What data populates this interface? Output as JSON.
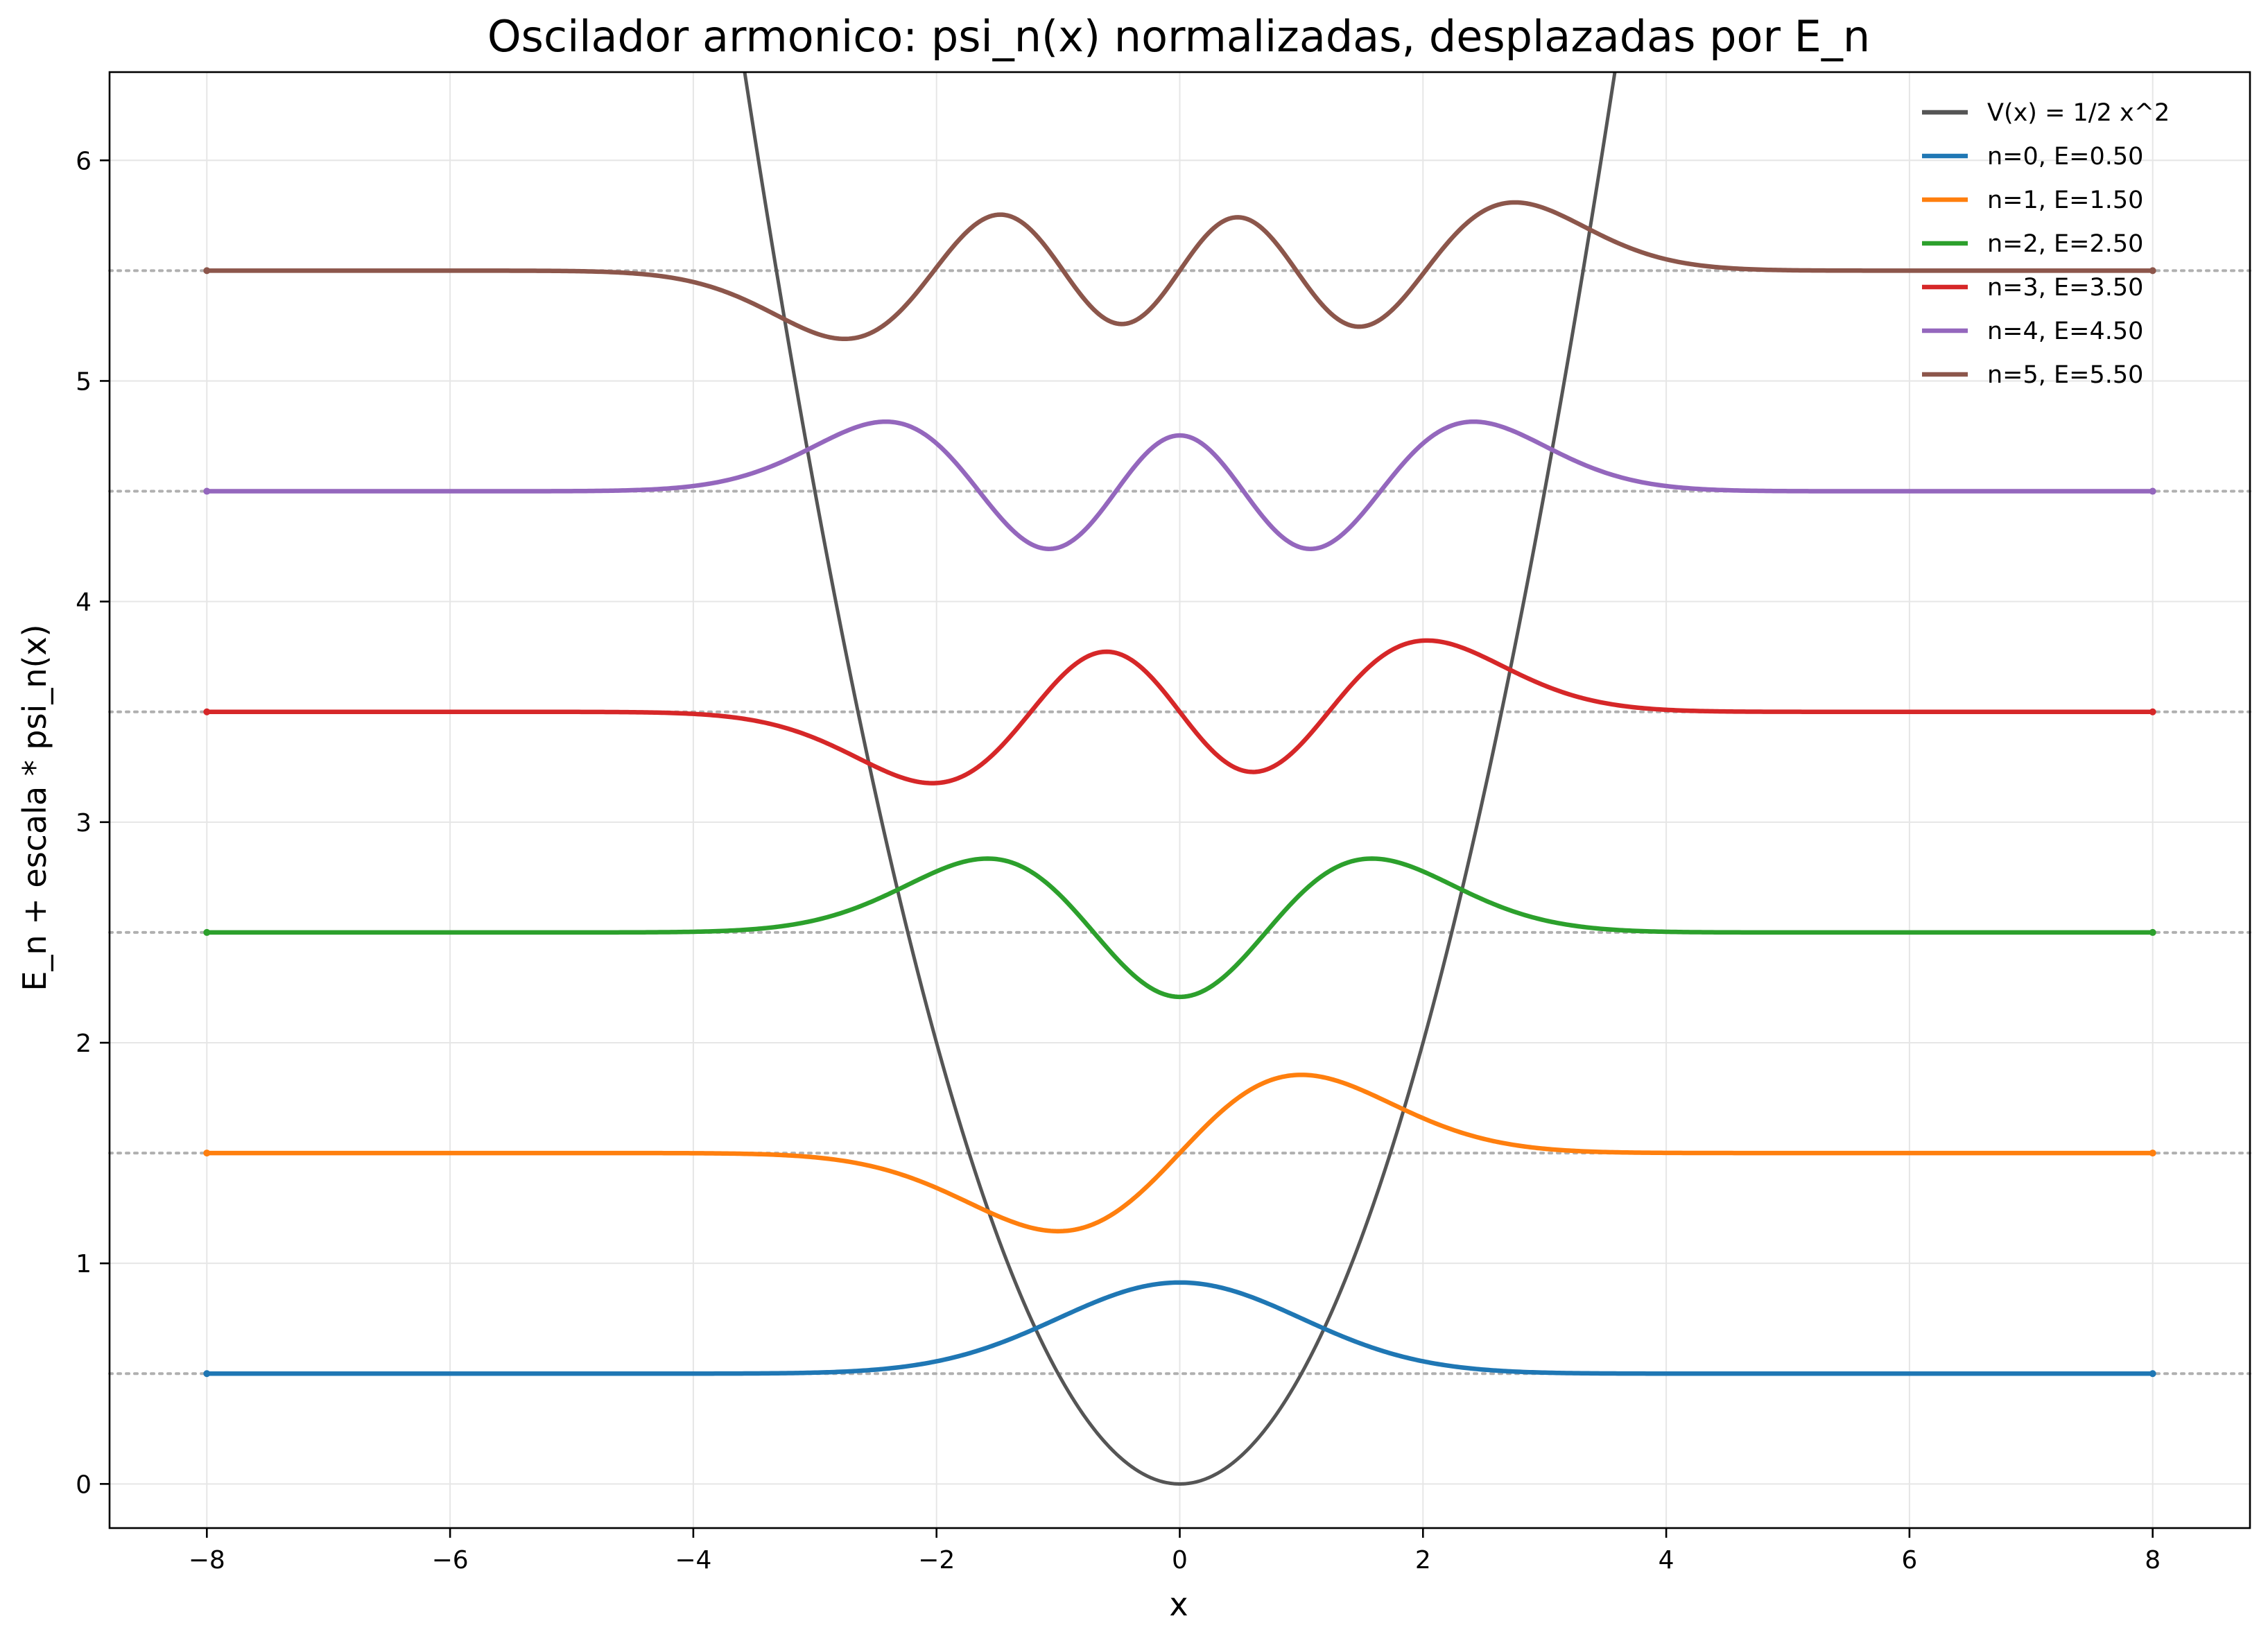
{
  "chart_data": {
    "type": "line",
    "title": "Oscilador armonico: psi_n(x) normalizadas, desplazadas por E_n",
    "xlabel": "x",
    "ylabel": "E_n + escala * psi_n(x)",
    "xlim": [
      -8.8,
      8.8
    ],
    "ylim": [
      -0.2,
      6.4
    ],
    "x_ticks": [
      -8,
      -6,
      -4,
      -2,
      0,
      2,
      4,
      6,
      8
    ],
    "x_tick_labels": [
      "−8",
      "−6",
      "−4",
      "−2",
      "0",
      "2",
      "4",
      "6",
      "8"
    ],
    "y_ticks": [
      0,
      1,
      2,
      3,
      4,
      5,
      6
    ],
    "y_tick_labels": [
      "0",
      "1",
      "2",
      "3",
      "4",
      "5",
      "6"
    ],
    "grid": true,
    "legend_position": "top-right",
    "x_range": [
      -8,
      8
    ],
    "scale": 0.55,
    "potential": {
      "name": "V(x) = 1/2 x^2",
      "formula": "0.5*x^2",
      "color": "#555555"
    },
    "series": [
      {
        "name": "n=0, E=0.50",
        "n": 0,
        "energy": 0.5,
        "color": "#1f77b4"
      },
      {
        "name": "n=1, E=1.50",
        "n": 1,
        "energy": 1.5,
        "color": "#ff7f0e"
      },
      {
        "name": "n=2, E=2.50",
        "n": 2,
        "energy": 2.5,
        "color": "#2ca02c"
      },
      {
        "name": "n=3, E=3.50",
        "n": 3,
        "energy": 3.5,
        "color": "#d62728"
      },
      {
        "name": "n=4, E=4.50",
        "n": 4,
        "energy": 4.5,
        "color": "#9467bd"
      },
      {
        "name": "n=5, E=5.50",
        "n": 5,
        "energy": 5.5,
        "color": "#8c564b"
      }
    ],
    "reference_lines": {
      "y": [
        0.5,
        1.5,
        2.5,
        3.5,
        4.5,
        5.5
      ],
      "style": "dotted",
      "color": "#b0b0b0"
    }
  }
}
